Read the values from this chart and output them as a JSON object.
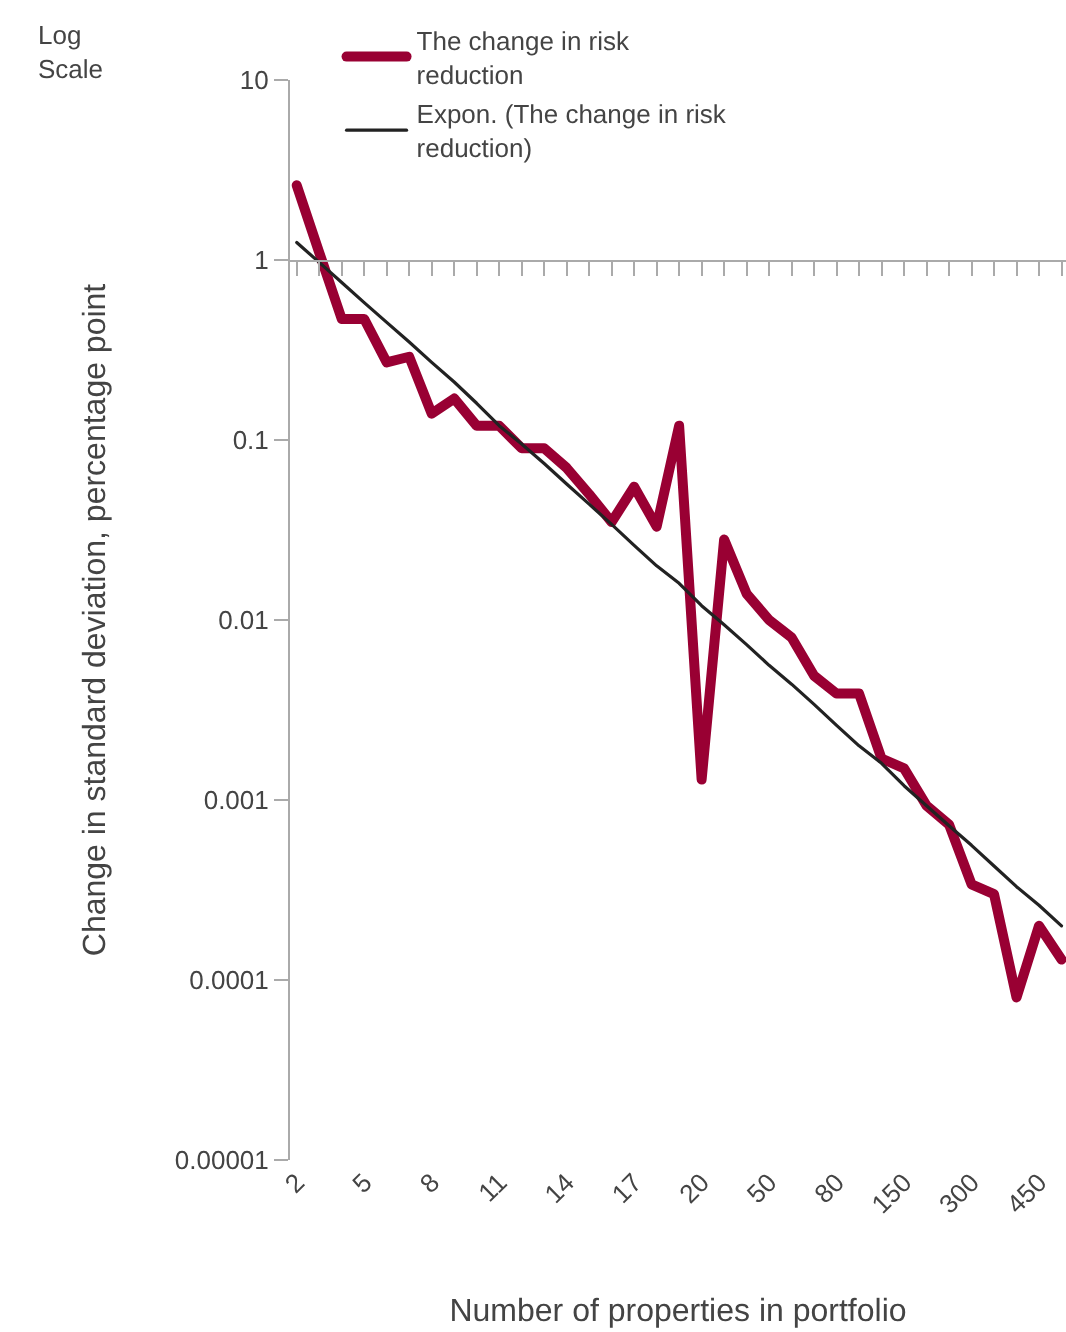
{
  "chart_data": {
    "type": "line",
    "xlabel": "Number of properties in portfolio",
    "ylabel": "Change in standard deviation, percentage point",
    "annotations": [
      "Log Scale"
    ],
    "categories": [
      "2",
      null,
      null,
      "5",
      null,
      null,
      "8",
      null,
      null,
      "11",
      null,
      null,
      "14",
      null,
      null,
      "17",
      null,
      null,
      "20",
      null,
      null,
      "50",
      null,
      null,
      "80",
      null,
      null,
      "150",
      null,
      null,
      "300",
      null,
      null,
      "450",
      null
    ],
    "series": [
      {
        "name": "The change in risk reduction",
        "color": "#990033",
        "values": [
          2.6,
          1.1,
          0.47,
          0.47,
          0.27,
          0.29,
          0.14,
          0.17,
          0.12,
          0.12,
          0.09,
          0.09,
          0.07,
          0.05,
          0.035,
          0.055,
          0.033,
          0.12,
          0.0013,
          0.028,
          0.014,
          0.01,
          0.008,
          0.0049,
          0.0039,
          0.0039,
          0.0017,
          0.0015,
          0.00093,
          0.00073,
          0.00034,
          0.0003,
          8e-05,
          0.0002,
          0.00013
        ]
      },
      {
        "name": "Expon. (The change in risk reduction)",
        "color": "#222222",
        "values": [
          1.25,
          0.97,
          0.75,
          0.58,
          0.45,
          0.35,
          0.27,
          0.21,
          0.16,
          0.12,
          0.095,
          0.074,
          0.057,
          0.044,
          0.034,
          0.026,
          0.02,
          0.016,
          0.012,
          0.0094,
          0.0073,
          0.0056,
          0.0044,
          0.0034,
          0.0026,
          0.002,
          0.0016,
          0.0012,
          0.00093,
          0.00072,
          0.00056,
          0.00043,
          0.00033,
          0.00026,
          0.0002
        ]
      }
    ],
    "log": "y",
    "ylim": [
      1e-05,
      10
    ],
    "yticks": [
      10,
      1,
      0.1,
      0.01,
      0.001,
      0.0001,
      {
        "value": 1e-05,
        "label": "0.00001"
      }
    ],
    "ref_lines": [
      {
        "axis": "y",
        "value": 1,
        "color": "#aaaaaa"
      }
    ],
    "grid": false,
    "legend": "top",
    "marker": "none",
    "line_style": "solid"
  }
}
